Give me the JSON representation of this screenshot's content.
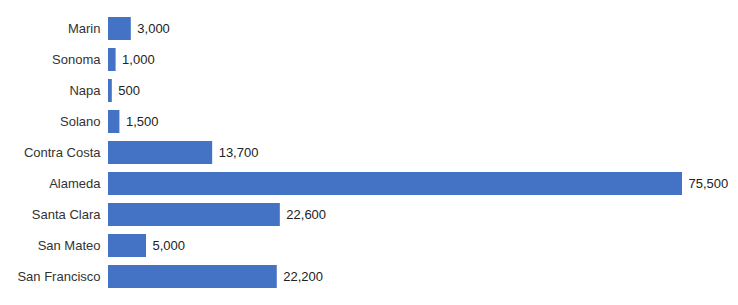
{
  "chart_data": {
    "type": "bar",
    "orientation": "horizontal",
    "categories": [
      "Marin",
      "Sonoma",
      "Napa",
      "Solano",
      "Contra Costa",
      "Alameda",
      "Santa Clara",
      "San Mateo",
      "San Francisco"
    ],
    "values": [
      3000,
      1000,
      500,
      1500,
      13700,
      75500,
      22600,
      5000,
      22200
    ],
    "value_labels": [
      "3,000",
      "1,000",
      "500",
      "1,500",
      "13,700",
      "75,500",
      "22,600",
      "5,000",
      "22,200"
    ],
    "color": "#4472c4",
    "data_labels": true,
    "tick_labels": "y",
    "grid": false
  }
}
